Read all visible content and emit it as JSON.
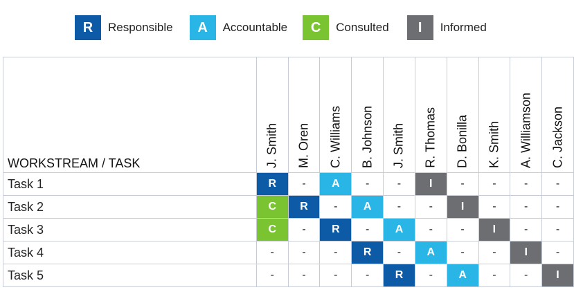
{
  "legend": [
    {
      "letter": "R",
      "label": "Responsible",
      "color": "#0d5aa7"
    },
    {
      "letter": "A",
      "label": "Accountable",
      "color": "#29b6e6"
    },
    {
      "letter": "C",
      "label": "Consulted",
      "color": "#7ac431"
    },
    {
      "letter": "I",
      "label": "Informed",
      "color": "#6d6e71"
    }
  ],
  "matrix": {
    "task_header": "WORKSTREAM / TASK",
    "people": [
      "J. Smith",
      "M. Oren",
      "C. Williams",
      "B. Johnson",
      "J. Smith",
      "R. Thomas",
      "D. Bonilla",
      "K. Smith",
      "A. Williamson",
      "C. Jackson"
    ],
    "rows": [
      {
        "task": "Task 1",
        "cells": [
          "R",
          "-",
          "A",
          "-",
          "-",
          "I",
          "-",
          "-",
          "-",
          "-"
        ]
      },
      {
        "task": "Task 2",
        "cells": [
          "C",
          "R",
          "-",
          "A",
          "-",
          "-",
          "I",
          "-",
          "-",
          "-"
        ]
      },
      {
        "task": "Task 3",
        "cells": [
          "C",
          "-",
          "R",
          "-",
          "A",
          "-",
          "-",
          "I",
          "-",
          "-"
        ]
      },
      {
        "task": "Task 4",
        "cells": [
          "-",
          "-",
          "-",
          "R",
          "-",
          "A",
          "-",
          "-",
          "I",
          "-"
        ]
      },
      {
        "task": "Task 5",
        "cells": [
          "-",
          "-",
          "-",
          "-",
          "R",
          "-",
          "A",
          "-",
          "-",
          "I"
        ]
      }
    ]
  }
}
